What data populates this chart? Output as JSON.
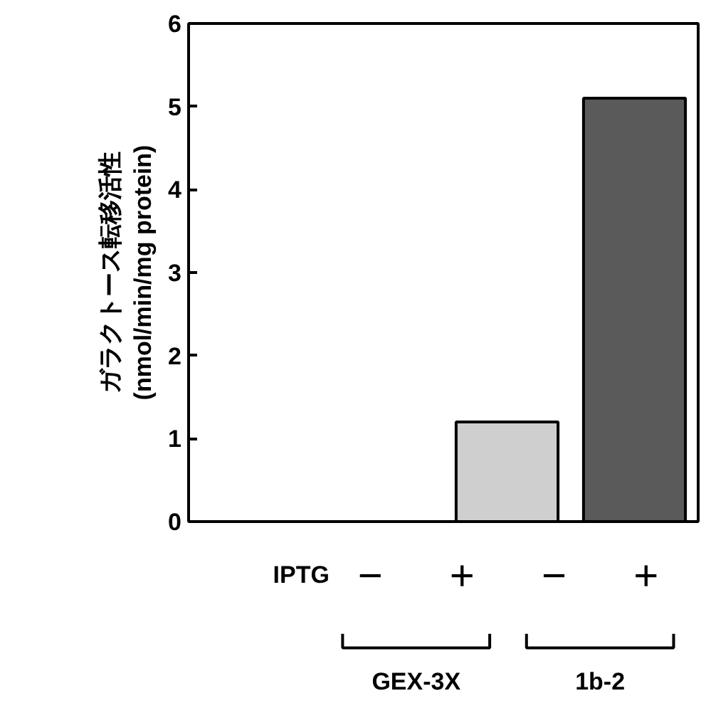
{
  "chart_data": {
    "type": "bar",
    "ylabel": "ガラクトース転移活性\n(nmol/min/mg protein)",
    "categories": [
      "−",
      "+",
      "−",
      "+"
    ],
    "values": [
      0,
      0,
      1.2,
      5.1
    ],
    "colors": [
      "#000000",
      "#000000",
      "#cfcfcf",
      "#5a5a5a"
    ],
    "ylim": [
      0,
      6
    ],
    "yticks": [
      0,
      1,
      2,
      3,
      4,
      5,
      6
    ],
    "grid": false,
    "annotations": [
      "IPTG",
      "GEX-3X",
      "1b-2"
    ]
  }
}
